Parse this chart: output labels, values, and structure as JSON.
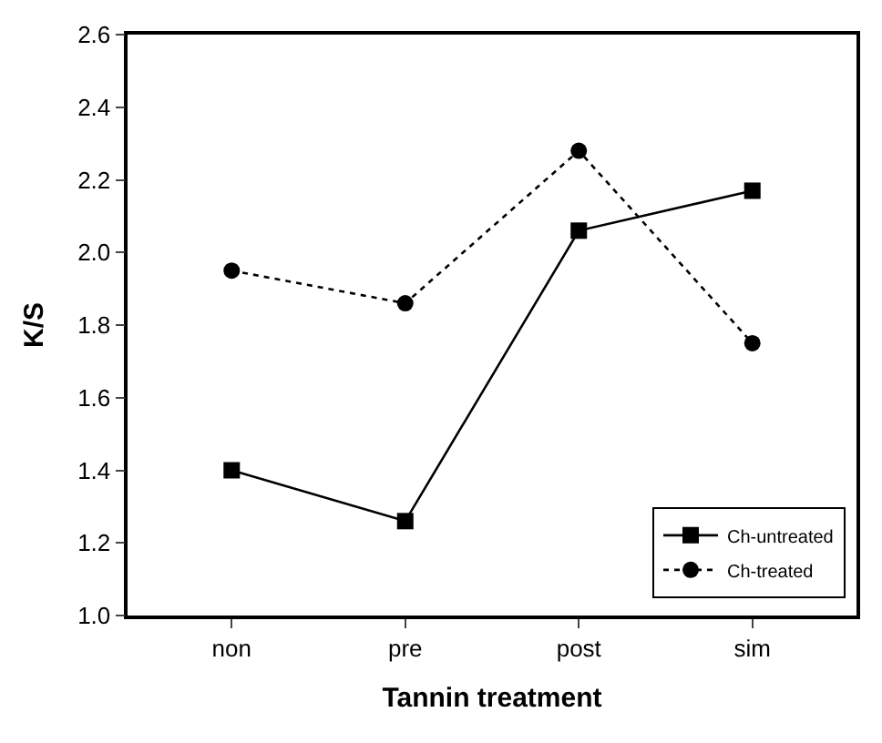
{
  "chart_data": {
    "type": "line",
    "xlabel": "Tannin treatment",
    "ylabel": "K/S",
    "categories": [
      "non",
      "pre",
      "post",
      "sim"
    ],
    "series": [
      {
        "name": "Ch-untreated",
        "color": "#000000",
        "values": [
          1.4,
          1.26,
          2.06,
          2.17
        ],
        "marker": "square",
        "line_style": "solid"
      },
      {
        "name": "Ch-treated",
        "color": "#000000",
        "values": [
          1.95,
          1.86,
          2.28,
          1.75
        ],
        "marker": "circle",
        "line_style": "dotted"
      }
    ],
    "ylim": [
      1.0,
      2.6
    ],
    "yticks": [
      {
        "value": 1.0,
        "label": "1.0"
      },
      1.2,
      1.4,
      1.6,
      1.8,
      {
        "value": 2.0,
        "label": "2.0"
      },
      2.2,
      2.4,
      2.6
    ],
    "legend": "bottom right"
  }
}
